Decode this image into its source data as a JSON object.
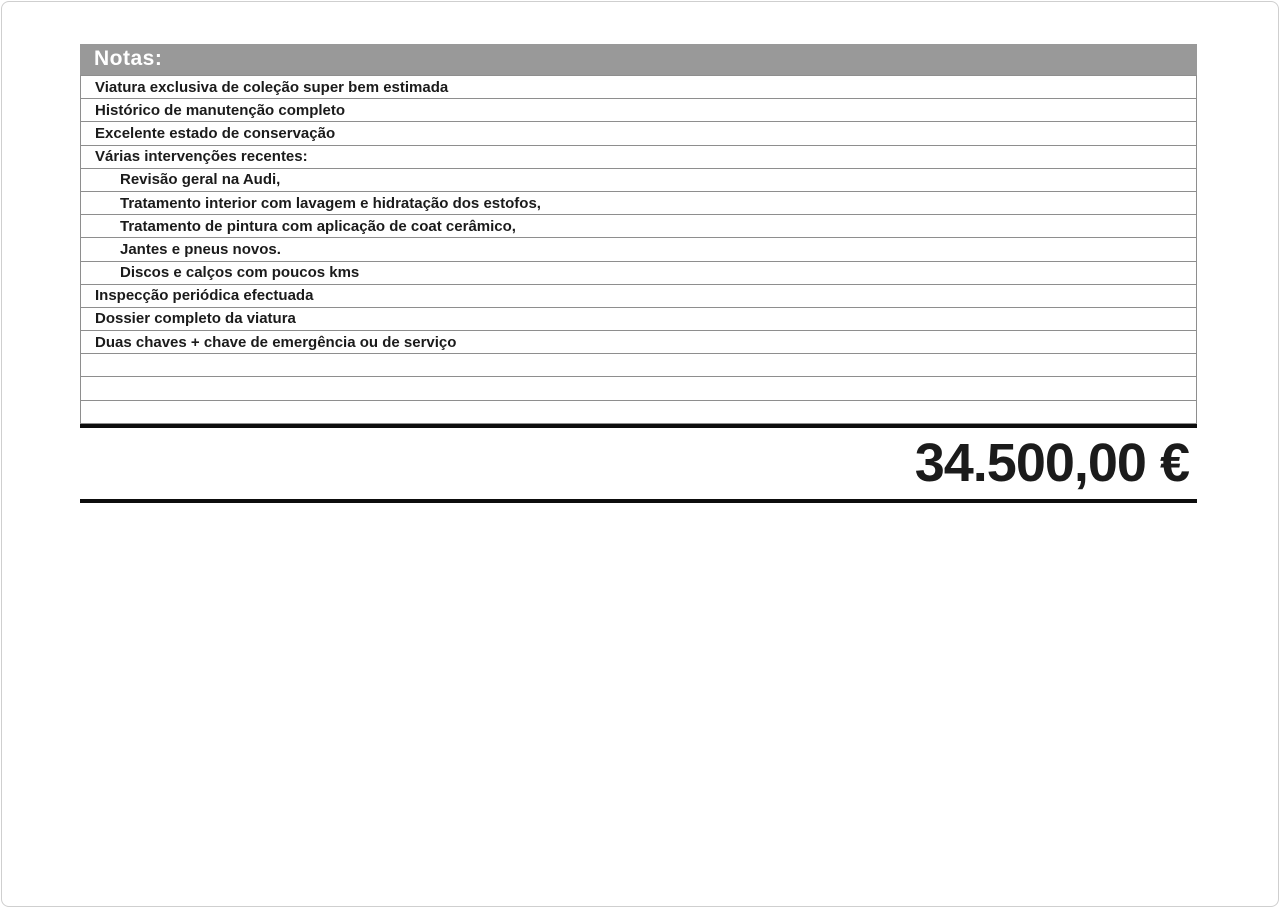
{
  "notes": {
    "header": "Notas:",
    "rows": [
      {
        "text": "Viatura exclusiva de coleção super bem estimada",
        "indent": 0
      },
      {
        "text": "Histórico de manutenção completo",
        "indent": 0
      },
      {
        "text": "Excelente estado de conservação",
        "indent": 0
      },
      {
        "text": "Várias intervenções recentes:",
        "indent": 0
      },
      {
        "text": "Revisão geral na Audi,",
        "indent": 1
      },
      {
        "text": "Tratamento interior com lavagem e hidratação dos estofos,",
        "indent": 1
      },
      {
        "text": "Tratamento de pintura com aplicação de coat cerâmico,",
        "indent": 1
      },
      {
        "text": "Jantes e pneus novos.",
        "indent": 1
      },
      {
        "text": "Discos e calços com poucos kms",
        "indent": 1
      },
      {
        "text": "Inspecção periódica efectuada",
        "indent": 0
      },
      {
        "text": "Dossier completo da viatura",
        "indent": 0
      },
      {
        "text": "Duas chaves + chave de emergência ou de serviço",
        "indent": 0
      },
      {
        "text": "",
        "indent": 0
      },
      {
        "text": "",
        "indent": 0
      },
      {
        "text": "",
        "indent": 0
      }
    ]
  },
  "price": {
    "value": "34.500,00 €"
  },
  "colors": {
    "header_bg": "#999999",
    "row_border": "#8e8e8e",
    "text_color": "#1b1b1b",
    "thick_line": "#0d0d0d",
    "page_border": "#cfcfcf"
  }
}
